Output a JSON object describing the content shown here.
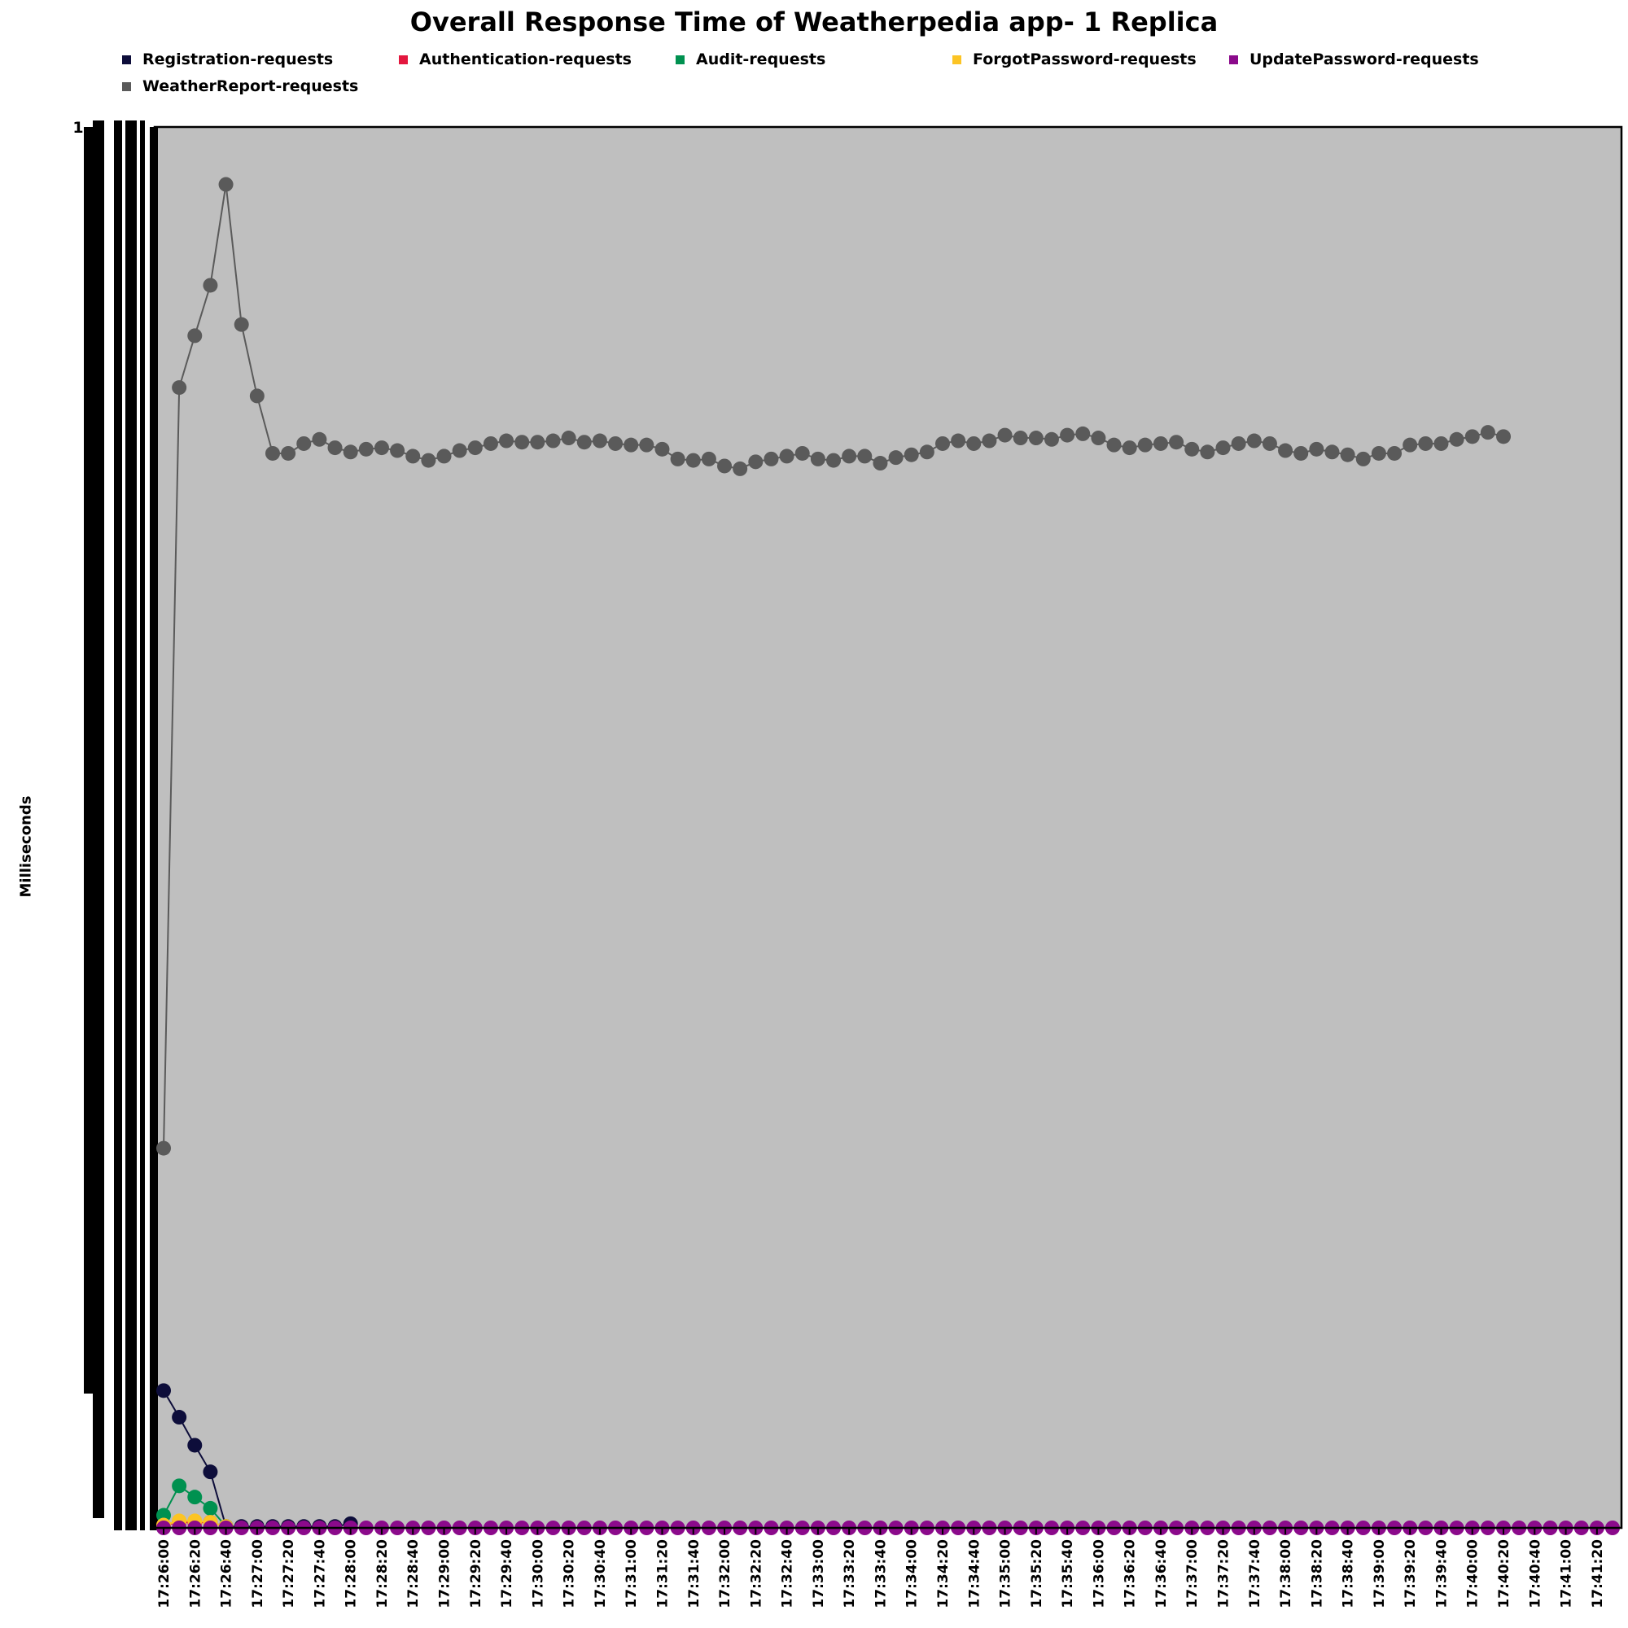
{
  "chart_data": {
    "type": "line",
    "title": "Overall Response Time of Weatherpedia app- 1 Replica",
    "xlabel": "",
    "ylabel": "Milliseconds",
    "y_top_tick_label": "1",
    "ylim": [
      0,
      1
    ],
    "grid": false,
    "legend_position": "top",
    "plot_background": "#bfbfbf",
    "x_tick_labels": [
      "17:26:00",
      "17:26:20",
      "17:26:40",
      "17:27:00",
      "17:27:20",
      "17:27:40",
      "17:28:00",
      "17:28:20",
      "17:28:40",
      "17:29:00",
      "17:29:20",
      "17:29:40",
      "17:30:00",
      "17:30:20",
      "17:30:40",
      "17:31:00",
      "17:31:20",
      "17:31:40",
      "17:32:00",
      "17:32:20",
      "17:32:40",
      "17:33:00",
      "17:33:20",
      "17:33:40",
      "17:34:00",
      "17:34:20",
      "17:34:40",
      "17:35:00",
      "17:35:20",
      "17:35:40",
      "17:36:00",
      "17:36:20",
      "17:36:40",
      "17:37:00",
      "17:37:20",
      "17:37:40",
      "17:38:00",
      "17:38:20",
      "17:38:40",
      "17:39:00",
      "17:39:20",
      "17:39:40",
      "17:40:00",
      "17:40:20",
      "17:40:40",
      "17:41:00",
      "17:41:20"
    ],
    "x_interval_seconds": 10,
    "point_count": 94,
    "series": [
      {
        "name": "Registration-requests",
        "color": "#0d0d3a",
        "values": [
          0.098,
          0.079,
          0.059,
          0.04,
          0.001,
          0.001,
          0.001,
          0.001,
          0.001,
          0.001,
          0.001,
          0.001,
          0.003
        ]
      },
      {
        "name": "Authentication-requests",
        "color": "#e3173e",
        "values": [
          0.002,
          0.004,
          0.004,
          0.004,
          0.001
        ]
      },
      {
        "name": "Audit-requests",
        "color": "#009150",
        "values": [
          0.009,
          0.03,
          0.022,
          0.014,
          0.001
        ]
      },
      {
        "name": "ForgotPassword-requests",
        "color": "#fcc424",
        "values": [
          0.002,
          0.005,
          0.005,
          0.004,
          0.001
        ]
      },
      {
        "name": "UpdatePassword-requests",
        "color": "#8b0a8b",
        "values": [
          0.0,
          0.0,
          0.0,
          0.0,
          0.0,
          0.0,
          0.0,
          0.0,
          0.0,
          0.0,
          0.0,
          0.0,
          0.0,
          0.0,
          0.0,
          0.0,
          0.0,
          0.0,
          0.0,
          0.0,
          0.0,
          0.0,
          0.0,
          0.0,
          0.0,
          0.0,
          0.0,
          0.0,
          0.0,
          0.0,
          0.0,
          0.0,
          0.0,
          0.0,
          0.0,
          0.0,
          0.0,
          0.0,
          0.0,
          0.0,
          0.0,
          0.0,
          0.0,
          0.0,
          0.0,
          0.0,
          0.0,
          0.0,
          0.0,
          0.0,
          0.0,
          0.0,
          0.0,
          0.0,
          0.0,
          0.0,
          0.0,
          0.0,
          0.0,
          0.0,
          0.0,
          0.0,
          0.0,
          0.0,
          0.0,
          0.0,
          0.0,
          0.0,
          0.0,
          0.0,
          0.0,
          0.0,
          0.0,
          0.0,
          0.0,
          0.0,
          0.0,
          0.0,
          0.0,
          0.0,
          0.0,
          0.0,
          0.0,
          0.0,
          0.0,
          0.0,
          0.0,
          0.0,
          0.0,
          0.0,
          0.0,
          0.0,
          0.0,
          0.0
        ]
      },
      {
        "name": "WeatherReport-requests",
        "color": "#5a5a5a",
        "values": [
          0.271,
          0.814,
          0.851,
          0.887,
          0.959,
          0.859,
          0.808,
          0.767,
          0.767,
          0.774,
          0.777,
          0.771,
          0.768,
          0.77,
          0.771,
          0.769,
          0.765,
          0.762,
          0.765,
          0.769,
          0.771,
          0.774,
          0.776,
          0.775,
          0.775,
          0.776,
          0.778,
          0.775,
          0.776,
          0.774,
          0.773,
          0.773,
          0.77,
          0.763,
          0.762,
          0.763,
          0.758,
          0.756,
          0.761,
          0.763,
          0.765,
          0.767,
          0.763,
          0.762,
          0.765,
          0.765,
          0.76,
          0.764,
          0.766,
          0.768,
          0.774,
          0.776,
          0.774,
          0.776,
          0.78,
          0.778,
          0.778,
          0.777,
          0.78,
          0.781,
          0.778,
          0.773,
          0.771,
          0.773,
          0.774,
          0.775,
          0.77,
          0.768,
          0.771,
          0.774,
          0.776,
          0.774,
          0.769,
          0.767,
          0.77,
          0.768,
          0.766,
          0.763,
          0.767,
          0.767,
          0.773,
          0.774,
          0.774,
          0.777,
          0.779,
          0.782,
          0.779
        ]
      }
    ]
  }
}
